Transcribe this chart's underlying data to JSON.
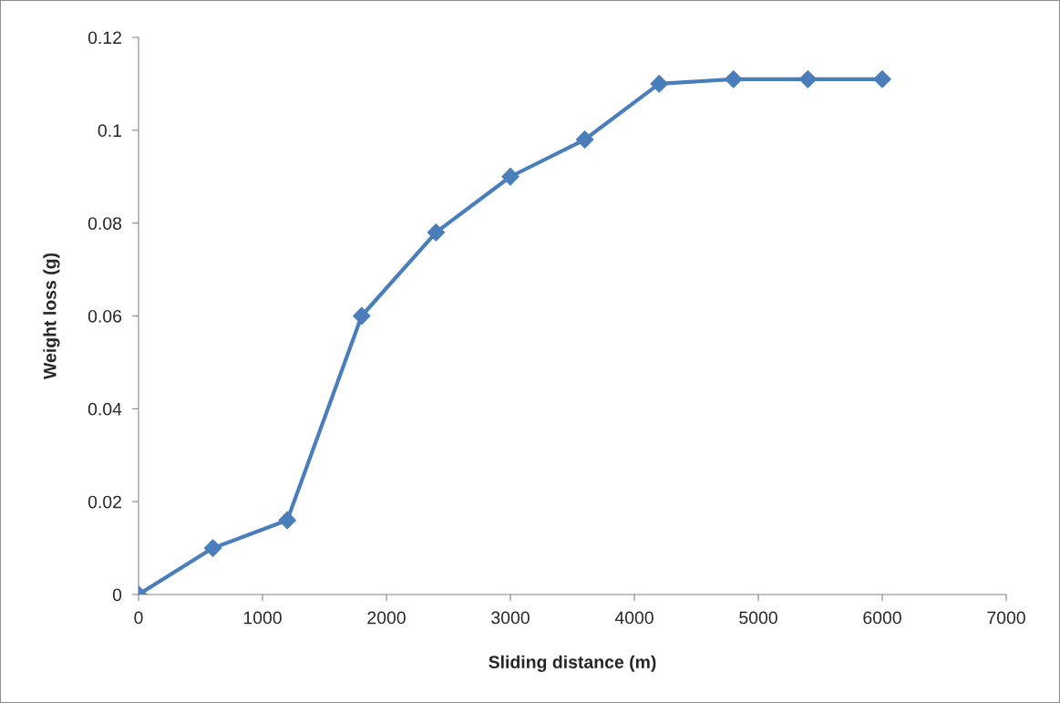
{
  "chart_data": {
    "type": "line",
    "xlabel": "Sliding distance (m)",
    "ylabel": "Weight loss (g)",
    "x": [
      0,
      600,
      1200,
      1800,
      2400,
      3000,
      3600,
      4200,
      4800,
      5400,
      6000
    ],
    "series": [
      {
        "color": "#4a7ebb",
        "values": [
          0,
          0.01,
          0.016,
          0.06,
          0.078,
          0.09,
          0.098,
          0.11,
          0.111,
          0.111,
          0.111
        ]
      }
    ],
    "xlim": [
      0,
      7000
    ],
    "xticks": [
      0,
      1000,
      2000,
      3000,
      4000,
      5000,
      6000,
      7000
    ],
    "ylim": [
      0,
      0.12
    ],
    "yticks": [
      0,
      0.02,
      0.04,
      0.06,
      0.08,
      0.1,
      0.12
    ],
    "marker": "diamond",
    "line_style": "solid",
    "grid": false,
    "legend": false
  }
}
